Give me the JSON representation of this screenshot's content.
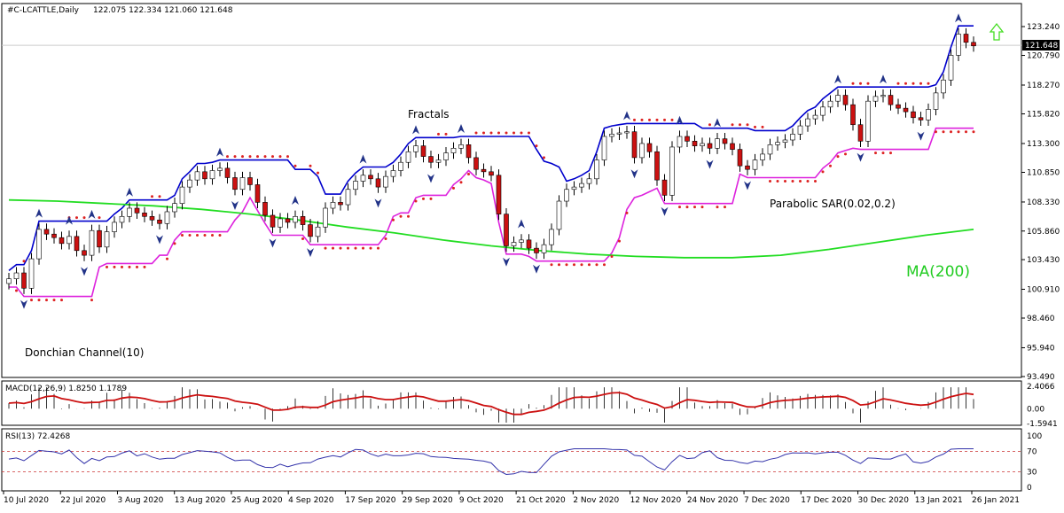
{
  "chart_data": {
    "type": "candlestick",
    "symbol": "#C-LCATTLE,Daily",
    "ohlc_header": "122.075 122.334 121.060 121.648",
    "last_price": "121.648",
    "y_ticks": [
      "123.240",
      "120.790",
      "118.270",
      "115.820",
      "113.300",
      "110.850",
      "108.330",
      "105.860",
      "103.430",
      "100.910",
      "98.460",
      "95.940",
      "93.490"
    ],
    "x_ticks": [
      "10 Jul 2020",
      "22 Jul 2020",
      "3 Aug 2020",
      "13 Aug 2020",
      "25 Aug 2020",
      "4 Sep 2020",
      "17 Sep 2020",
      "29 Sep 2020",
      "9 Oct 2020",
      "21 Oct 2020",
      "2 Nov 2020",
      "12 Nov 2020",
      "24 Nov 2020",
      "7 Dec 2020",
      "17 Dec 2020",
      "30 Dec 2020",
      "13 Jan 2021",
      "26 Jan 2021"
    ],
    "annotations": {
      "fractals": "Fractals",
      "parabolic": "Parabolic SAR(0.02,0.2)",
      "donchian": "Donchian Channel(10)",
      "ma": "MA(200)"
    },
    "closes": [
      101.8,
      102.3,
      101.0,
      103.5,
      106.0,
      105.6,
      105.3,
      104.8,
      105.4,
      104.2,
      103.8,
      105.9,
      104.5,
      105.8,
      106.6,
      107.1,
      107.8,
      107.4,
      107.1,
      106.8,
      106.5,
      107.5,
      108.2,
      109.6,
      110.2,
      110.9,
      110.3,
      111.0,
      111.2,
      110.4,
      109.4,
      110.4,
      109.8,
      108.3,
      107.2,
      106.2,
      106.9,
      106.6,
      107.1,
      106.4,
      105.4,
      106.2,
      107.8,
      108.3,
      108.1,
      109.4,
      110.1,
      110.6,
      110.3,
      109.6,
      110.5,
      111.0,
      111.7,
      112.6,
      113.1,
      112.2,
      111.7,
      111.9,
      112.5,
      112.9,
      113.2,
      112.1,
      111.1,
      110.9,
      110.6,
      107.3,
      104.6,
      104.9,
      105.1,
      104.4,
      104.0,
      104.7,
      106.0,
      108.4,
      109.4,
      109.6,
      109.9,
      110.3,
      111.9,
      113.9,
      114.1,
      114.2,
      114.3,
      112.1,
      113.3,
      112.6,
      110.2,
      108.9,
      113.0,
      113.9,
      113.5,
      113.1,
      113.3,
      112.9,
      113.7,
      113.3,
      112.8,
      111.4,
      111.1,
      111.9,
      112.4,
      113.2,
      113.4,
      113.6,
      114.1,
      114.8,
      115.4,
      115.7,
      116.4,
      116.9,
      117.4,
      116.6,
      114.9,
      113.5,
      116.9,
      117.3,
      117.4,
      116.6,
      116.3,
      116.0,
      115.5,
      115.3,
      116.2,
      117.6,
      118.7,
      120.8,
      122.6,
      121.9,
      121.6
    ],
    "ma200": [
      108.5,
      108.4,
      108.2,
      108.0,
      107.7,
      107.3,
      106.8,
      106.2,
      105.7,
      105.1,
      104.6,
      104.2,
      103.9,
      103.7,
      103.6,
      103.6,
      103.8,
      104.3,
      104.9,
      105.5,
      106.0
    ],
    "macd_value": "1.8250",
    "macd_signal": "1.1789",
    "macd_ticks": [
      "2.4066",
      "0.00",
      "-1.5941"
    ],
    "rsi_value": "72.4268",
    "rsi_ticks": [
      "100",
      "70",
      "30",
      "0"
    ],
    "rsi_levels": [
      30,
      70
    ],
    "macd_label": "MACD(12,26,9)",
    "rsi_label": "RSI(13)"
  }
}
